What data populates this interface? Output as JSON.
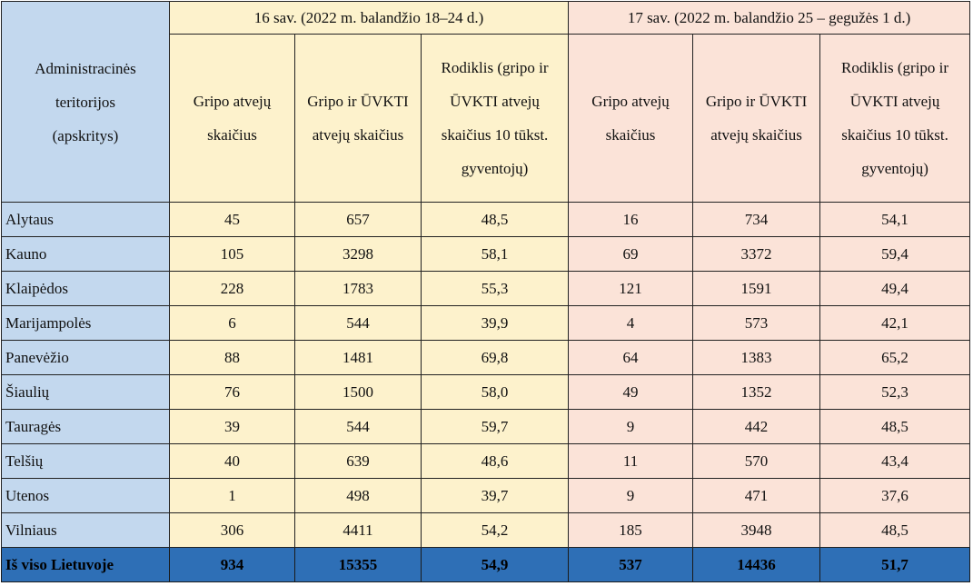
{
  "table": {
    "region_header": "Administracinės teritorijos (apskritys)",
    "week16_header": "16 sav. (2022 m. balandžio 18–24 d.)",
    "week17_header": "17 sav. (2022 m. balandžio 25 – gegužės 1 d.)",
    "col_flu": "Gripo atvejų skaičius",
    "col_flu_ari": "Gripo ir ŪVKTI atvejų skaičius",
    "col_rate": "Rodiklis (gripo ir ŪVKTI atvejų skaičius 10 tūkst. gyventojų)",
    "rows": [
      {
        "region": "Alytaus",
        "w16_flu": "45",
        "w16_flu_ari": "657",
        "w16_rate": "48,5",
        "w17_flu": "16",
        "w17_flu_ari": "734",
        "w17_rate": "54,1"
      },
      {
        "region": "Kauno",
        "w16_flu": "105",
        "w16_flu_ari": "3298",
        "w16_rate": "58,1",
        "w17_flu": "69",
        "w17_flu_ari": "3372",
        "w17_rate": "59,4"
      },
      {
        "region": "Klaipėdos",
        "w16_flu": "228",
        "w16_flu_ari": "1783",
        "w16_rate": "55,3",
        "w17_flu": "121",
        "w17_flu_ari": "1591",
        "w17_rate": "49,4"
      },
      {
        "region": "Marijampolės",
        "w16_flu": "6",
        "w16_flu_ari": "544",
        "w16_rate": "39,9",
        "w17_flu": "4",
        "w17_flu_ari": "573",
        "w17_rate": "42,1"
      },
      {
        "region": "Panevėžio",
        "w16_flu": "88",
        "w16_flu_ari": "1481",
        "w16_rate": "69,8",
        "w17_flu": "64",
        "w17_flu_ari": "1383",
        "w17_rate": "65,2"
      },
      {
        "region": "Šiaulių",
        "w16_flu": "76",
        "w16_flu_ari": "1500",
        "w16_rate": "58,0",
        "w17_flu": "49",
        "w17_flu_ari": "1352",
        "w17_rate": "52,3"
      },
      {
        "region": "Tauragės",
        "w16_flu": "39",
        "w16_flu_ari": "544",
        "w16_rate": "59,7",
        "w17_flu": "9",
        "w17_flu_ari": "442",
        "w17_rate": "48,5"
      },
      {
        "region": "Telšių",
        "w16_flu": "40",
        "w16_flu_ari": "639",
        "w16_rate": "48,6",
        "w17_flu": "11",
        "w17_flu_ari": "570",
        "w17_rate": "43,4"
      },
      {
        "region": "Utenos",
        "w16_flu": "1",
        "w16_flu_ari": "498",
        "w16_rate": "39,7",
        "w17_flu": "9",
        "w17_flu_ari": "471",
        "w17_rate": "37,6"
      },
      {
        "region": "Vilniaus",
        "w16_flu": "306",
        "w16_flu_ari": "4411",
        "w16_rate": "54,2",
        "w17_flu": "185",
        "w17_flu_ari": "3948",
        "w17_rate": "48,5"
      }
    ],
    "total": {
      "region": "Iš viso Lietuvoje",
      "w16_flu": "934",
      "w16_flu_ari": "15355",
      "w16_rate": "54,9",
      "w17_flu": "537",
      "w17_flu_ari": "14436",
      "w17_rate": "51,7"
    }
  },
  "colors": {
    "region_column": "#c3d8ee",
    "week16_fill": "#fdf2cc",
    "week17_fill": "#fbe3d8",
    "total_row": "#2e6fb6"
  }
}
